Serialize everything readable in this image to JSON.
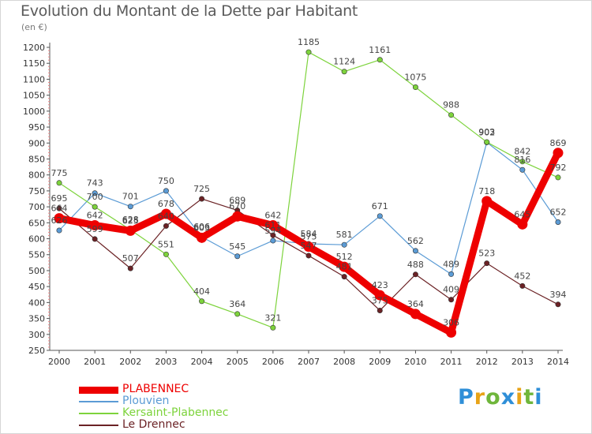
{
  "title": "Evolution du Montant de la Dette par Habitant",
  "subtitle": "(en €)",
  "logo": "Proxiti",
  "chart_data": {
    "type": "line",
    "x": [
      "2000",
      "2001",
      "2002",
      "2003",
      "2004",
      "2005",
      "2006",
      "2007",
      "2008",
      "2009",
      "2010",
      "2011",
      "2012",
      "2013",
      "2014"
    ],
    "ylim": [
      250,
      1200
    ],
    "yticks": [
      250,
      300,
      350,
      400,
      450,
      500,
      550,
      600,
      650,
      700,
      750,
      800,
      850,
      900,
      950,
      1000,
      1050,
      1100,
      1150,
      1200
    ],
    "grid": false,
    "legend_position": "bottom-left",
    "series": [
      {
        "name": "PLABENNEC",
        "color": "#ee0000",
        "values": [
          664,
          642,
          625,
          678,
          603,
          670,
          642,
          575,
          512,
          423,
          364,
          306,
          718,
          645,
          869
        ]
      },
      {
        "name": "Plouvien",
        "color": "#5b9bd5",
        "values": [
          626,
          743,
          701,
          750,
          606,
          545,
          594,
          584,
          581,
          671,
          562,
          489,
          902,
          816,
          652
        ]
      },
      {
        "name": "Kersaint-Plabennec",
        "color": "#7dd33c",
        "values": [
          775,
          700,
          628,
          551,
          404,
          364,
          321,
          1185,
          1124,
          1161,
          1075,
          988,
          903,
          842,
          792
        ]
      },
      {
        "name": "Le Drennec",
        "color": "#6b2225",
        "values": [
          695,
          599,
          507,
          640,
          725,
          689,
          611,
          547,
          481,
          375,
          488,
          409,
          523,
          452,
          394
        ]
      }
    ],
    "data_labels": [
      [
        "664",
        "642",
        "625",
        "678",
        "603",
        "670",
        "642",
        "575",
        "512",
        "423",
        "364",
        "306",
        "718",
        "645",
        "869"
      ],
      [
        "626",
        "743",
        "701",
        "750",
        "606",
        "545",
        "594",
        "584",
        "581",
        "671",
        "562",
        "489",
        "902",
        "816",
        "652"
      ],
      [
        "775",
        "700",
        "628",
        "551",
        "404",
        "364",
        "321",
        "1185",
        "1124",
        "1161",
        "1075",
        "988",
        "903",
        "842",
        "792"
      ],
      [
        "695",
        "599",
        "507",
        "640",
        "725",
        "689",
        "611",
        "547",
        "481",
        "375",
        "488",
        "409",
        "523",
        "452",
        "394"
      ]
    ]
  }
}
